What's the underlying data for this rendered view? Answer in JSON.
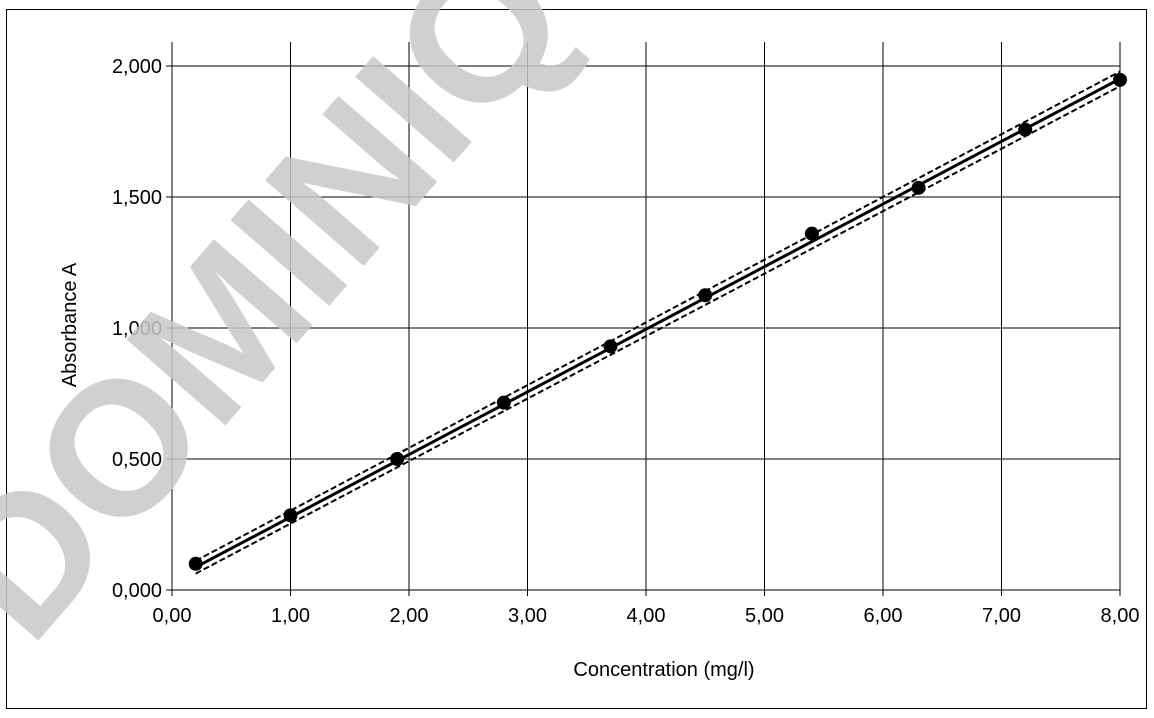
{
  "watermark": "DOMINIQUE D",
  "chart_data": {
    "type": "scatter",
    "xlabel": "Concentration (mg/l)",
    "ylabel": "Absorbance A",
    "xlim": [
      0,
      8
    ],
    "ylim": [
      0,
      2
    ],
    "x_ticks": [
      0,
      1,
      2,
      3,
      4,
      5,
      6,
      7,
      8
    ],
    "y_ticks": [
      0,
      0.5,
      1.0,
      1.5,
      2.0
    ],
    "x_tick_labels": [
      "0,00",
      "1,00",
      "2,00",
      "3,00",
      "4,00",
      "5,00",
      "6,00",
      "7,00",
      "8,00"
    ],
    "y_tick_labels": [
      "0,000",
      "0,500",
      "1,000",
      "1,500",
      "2,000"
    ],
    "grid": true,
    "legend": "none",
    "series": [
      {
        "kind": "points",
        "color": "#000000",
        "x": [
          0.2,
          1.0,
          1.9,
          2.8,
          3.7,
          4.5,
          5.4,
          6.3,
          7.2,
          8.0
        ],
        "y": [
          0.1,
          0.285,
          0.5,
          0.715,
          0.93,
          1.125,
          1.36,
          1.535,
          1.757,
          1.947
        ]
      },
      {
        "kind": "line",
        "style": "solid",
        "color": "#000000",
        "x": [
          0.2,
          8.0
        ],
        "y": [
          0.087,
          1.951
        ]
      },
      {
        "kind": "line",
        "style": "dashed",
        "color": "#000000",
        "x": [
          0.2,
          8.0
        ],
        "y": [
          0.1115,
          1.979
        ]
      },
      {
        "kind": "line",
        "style": "dashed",
        "color": "#000000",
        "x": [
          0.2,
          8.0
        ],
        "y": [
          0.0625,
          1.923
        ]
      }
    ]
  }
}
